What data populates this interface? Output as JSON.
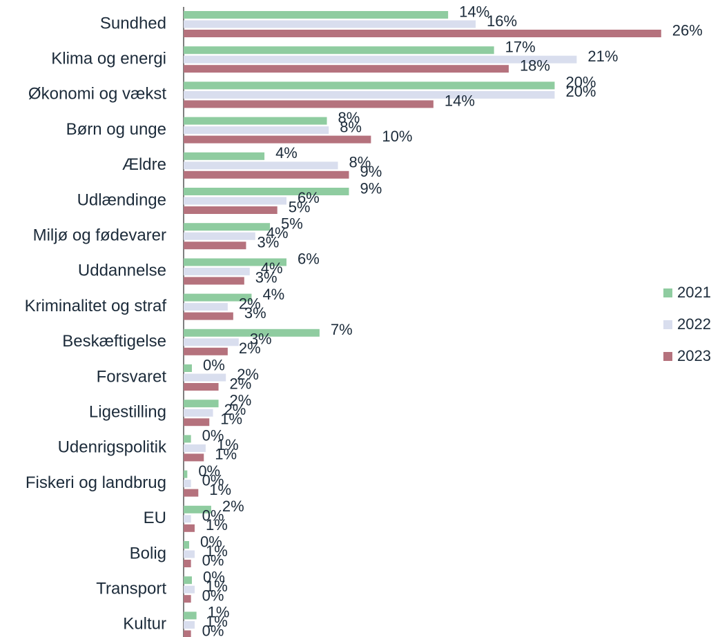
{
  "chart_data": {
    "type": "hbar",
    "categories": [
      "Sundhed",
      "Klima og energi",
      "Økonomi og vækst",
      "Børn og unge",
      "Ældre",
      "Udlændinge",
      "Miljø og fødevarer",
      "Uddannelse",
      "Kriminalitet og straf",
      "Beskæftigelse",
      "Forsvaret",
      "Ligestilling",
      "Udenrigspolitik",
      "Fiskeri og landbrug",
      "EU",
      "Bolig",
      "Transport",
      "Kultur"
    ],
    "series": [
      {
        "name": "2021",
        "color": "#8fcca0",
        "values": [
          14.4,
          16.9,
          20.2,
          7.8,
          4.4,
          9.0,
          4.7,
          5.6,
          3.7,
          7.4,
          0.45,
          1.9,
          0.4,
          0.2,
          1.5,
          0.3,
          0.45,
          0.7
        ],
        "value_labels": [
          "14%",
          "17%",
          "20%",
          "8%",
          "4%",
          "9%",
          "5%",
          "6%",
          "4%",
          "7%",
          "0%",
          "2%",
          "0%",
          "0%",
          "2%",
          "0%",
          "0%",
          "1%"
        ]
      },
      {
        "name": "2022",
        "color": "#d9deee",
        "values": [
          15.9,
          21.4,
          20.2,
          7.9,
          8.4,
          5.6,
          3.9,
          3.6,
          2.4,
          3.0,
          2.3,
          1.6,
          1.2,
          0.4,
          0.4,
          0.6,
          0.6,
          0.6
        ],
        "value_labels": [
          "16%",
          "21%",
          "20%",
          "8%",
          "8%",
          "6%",
          "4%",
          "4%",
          "2%",
          "3%",
          "2%",
          "2%",
          "1%",
          "0%",
          "0%",
          "1%",
          "1%",
          "1%"
        ]
      },
      {
        "name": "2023",
        "color": "#b5727d",
        "values": [
          26.0,
          17.7,
          13.6,
          10.2,
          9.0,
          5.1,
          3.4,
          3.3,
          2.7,
          2.4,
          1.9,
          1.4,
          1.1,
          0.8,
          0.6,
          0.4,
          0.4,
          0.4
        ],
        "value_labels": [
          "26%",
          "18%",
          "14%",
          "10%",
          "9%",
          "5%",
          "3%",
          "3%",
          "3%",
          "2%",
          "2%",
          "1%",
          "1%",
          "1%",
          "1%",
          "0%",
          "0%",
          "0%"
        ]
      }
    ],
    "xlim": [
      0,
      28
    ],
    "legend": "right"
  }
}
